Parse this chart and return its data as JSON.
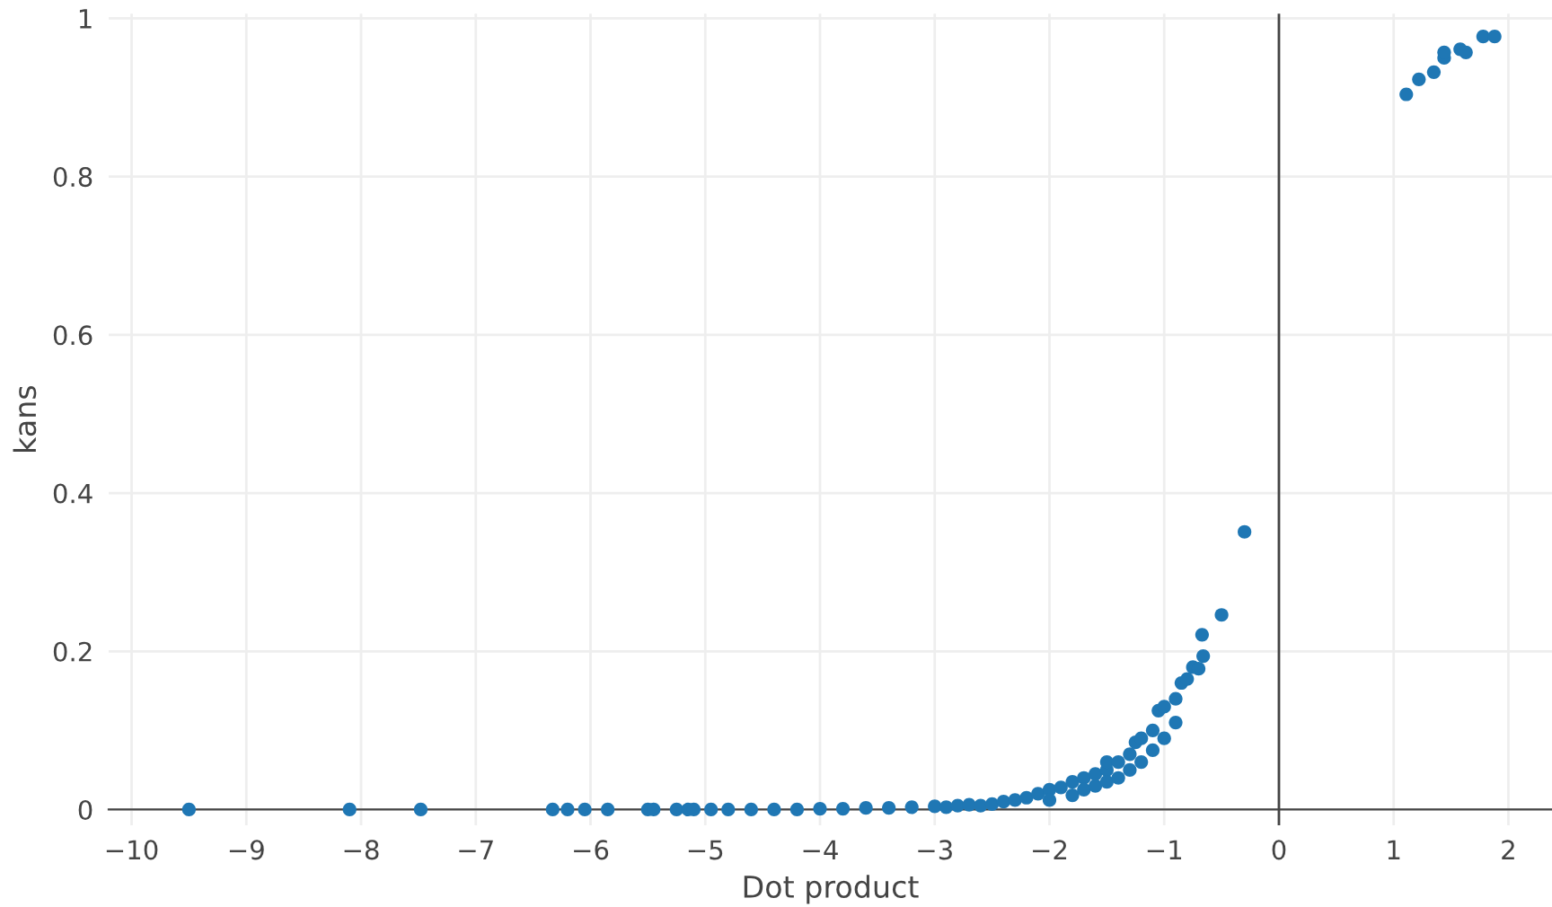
{
  "chart_data": {
    "type": "scatter",
    "xlabel": "Dot product",
    "ylabel": "kans",
    "xlim": [
      -10.2,
      2.38
    ],
    "ylim": [
      -0.02,
      1.006
    ],
    "xticks": [
      {
        "value": -10,
        "label": "−10"
      },
      {
        "value": -9,
        "label": "−9"
      },
      {
        "value": -8,
        "label": "−8"
      },
      {
        "value": -7,
        "label": "−7"
      },
      {
        "value": -6,
        "label": "−6"
      },
      {
        "value": -5,
        "label": "−5"
      },
      {
        "value": -4,
        "label": "−4"
      },
      {
        "value": -3,
        "label": "−3"
      },
      {
        "value": -2,
        "label": "−2"
      },
      {
        "value": -1,
        "label": "−1"
      },
      0,
      1,
      2
    ],
    "yticks": [
      0,
      0.2,
      0.4,
      0.6,
      0.8,
      1
    ],
    "grid": true,
    "marker": "circle",
    "ref_lines": [
      {
        "axis": "x",
        "value": 0,
        "color": "#444444"
      }
    ],
    "series": [
      {
        "color": "#1f77b4",
        "x": [
          -9.5,
          -8.1,
          -7.48,
          -6.33,
          -6.2,
          -6.05,
          -5.85,
          -5.5,
          -5.45,
          -5.25,
          -5.15,
          -5.1,
          -4.95,
          -4.8,
          -4.6,
          -4.4,
          -4.2,
          -4.0,
          -3.8,
          -3.6,
          -3.4,
          -3.2,
          -3.0,
          -2.9,
          -2.8,
          -2.7,
          -2.6,
          -2.5,
          -2.4,
          -2.3,
          -2.2,
          -2.1,
          -2.0,
          -2.0,
          -1.9,
          -1.8,
          -1.8,
          -1.7,
          -1.7,
          -1.6,
          -1.6,
          -1.5,
          -1.5,
          -1.5,
          -1.4,
          -1.4,
          -1.3,
          -1.3,
          -1.25,
          -1.2,
          -1.2,
          -1.1,
          -1.1,
          -1.05,
          -1.0,
          -1.0,
          -0.9,
          -0.9,
          -0.85,
          -0.8,
          -0.75,
          -0.7,
          -0.66,
          -0.67,
          -0.5,
          -0.3,
          1.11,
          1.22,
          1.35,
          1.44,
          1.44,
          1.58,
          1.63,
          1.78,
          1.88
        ],
        "values": [
          0,
          0,
          0,
          0,
          0,
          0,
          0,
          0,
          0,
          0,
          0,
          0,
          0,
          0,
          0,
          0,
          0,
          0.001,
          0.001,
          0.002,
          0.002,
          0.003,
          0.004,
          0.003,
          0.005,
          0.006,
          0.005,
          0.007,
          0.01,
          0.012,
          0.015,
          0.02,
          0.025,
          0.012,
          0.028,
          0.035,
          0.018,
          0.04,
          0.025,
          0.045,
          0.03,
          0.05,
          0.035,
          0.06,
          0.06,
          0.04,
          0.07,
          0.05,
          0.085,
          0.09,
          0.06,
          0.1,
          0.075,
          0.125,
          0.13,
          0.09,
          0.14,
          0.11,
          0.16,
          0.165,
          0.18,
          0.178,
          0.194,
          0.221,
          0.246,
          0.351,
          0.904,
          0.923,
          0.932,
          0.95,
          0.957,
          0.961,
          0.957,
          0.977,
          0.977
        ]
      }
    ]
  }
}
